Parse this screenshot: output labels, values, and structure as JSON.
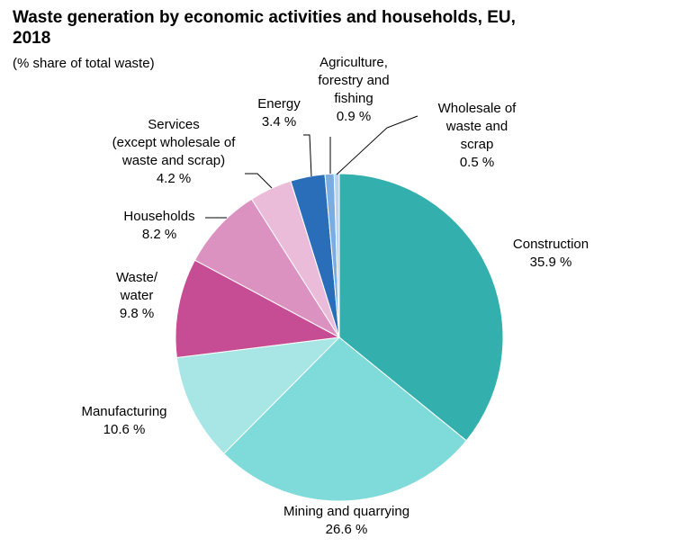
{
  "chart_data": {
    "type": "pie",
    "title": "Waste generation by economic activities and households, EU, 2018",
    "subtitle": "(% share of total waste)",
    "slices": [
      {
        "name": "Construction",
        "value_label": "35.9 %",
        "value": 35.9,
        "color": "#33b0ae"
      },
      {
        "name": "Mining and quarrying",
        "value_label": "26.6 %",
        "value": 26.6,
        "color": "#7fdbd9"
      },
      {
        "name": "Manufacturing",
        "value_label": "10.6 %",
        "value": 10.6,
        "color": "#a8e6e6"
      },
      {
        "name": "Waste/ water",
        "value_label": "9.8 %",
        "value": 9.8,
        "color": "#c64c93"
      },
      {
        "name": "Households",
        "value_label": "8.2 %",
        "value": 8.2,
        "color": "#dc92c0"
      },
      {
        "name": "Services (except wholesale of waste and scrap)",
        "value_label": "4.2 %",
        "value": 4.2,
        "color": "#ebbcd9"
      },
      {
        "name": "Energy",
        "value_label": "3.4 %",
        "value": 3.4,
        "color": "#2a6db8"
      },
      {
        "name": "Agriculture, forestry and fishing",
        "value_label": "0.9 %",
        "value": 0.9,
        "color": "#7aaee3"
      },
      {
        "name": "Wholesale of waste and scrap",
        "value_label": "0.5 %",
        "value": 0.5,
        "color": "#b9d3f0"
      }
    ]
  }
}
